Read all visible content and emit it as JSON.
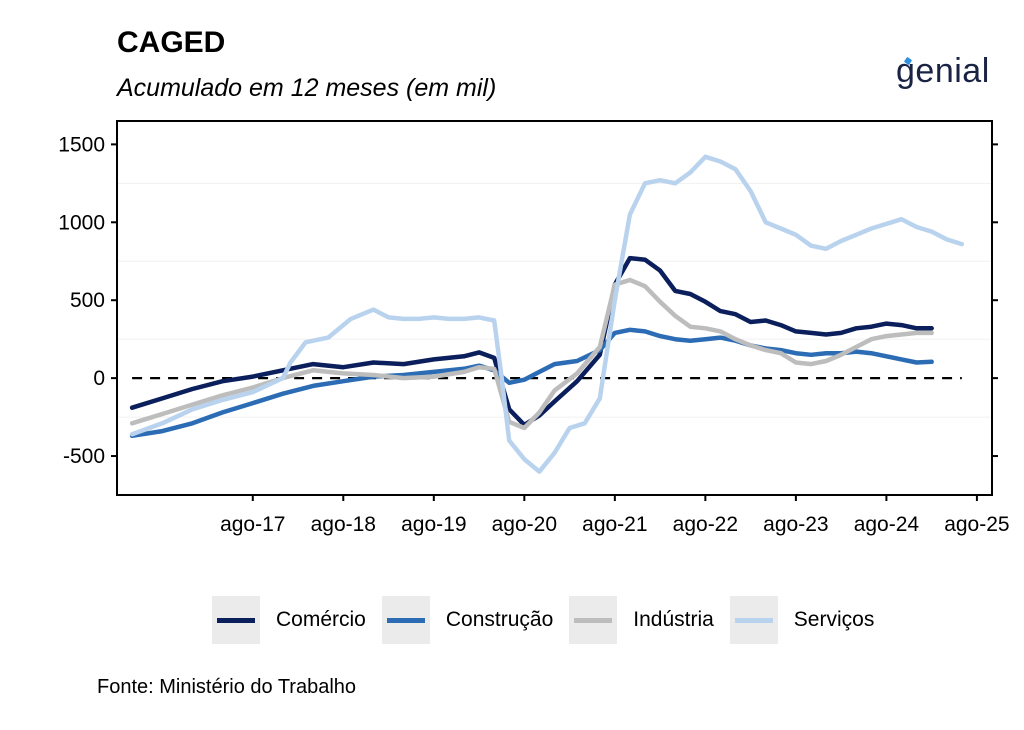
{
  "header": {
    "title": "CAGED",
    "subtitle": "Acumulado em 12 meses (em mil)",
    "logo_text": "genial"
  },
  "footer": {
    "source": "Fonte: Ministério do Trabalho"
  },
  "colors": {
    "Comércio": "#0b1f5c",
    "Construção": "#2b6cb5",
    "Indústria": "#bdbdbd",
    "Serviços": "#b9d3ee",
    "zero_line": "#000000"
  },
  "chart_data": {
    "type": "line",
    "title": "CAGED",
    "subtitle": "Acumulado em 12 meses (em mil)",
    "xlabel": "",
    "ylabel": "",
    "x_ticks": [
      "ago-17",
      "ago-18",
      "ago-19",
      "ago-20",
      "ago-21",
      "ago-22",
      "ago-23",
      "ago-24",
      "ago-25"
    ],
    "y_ticks": [
      -500,
      0,
      500,
      1000,
      1500
    ],
    "ylim": [
      -750,
      1650
    ],
    "xlim": [
      "2016-02",
      "2025-10"
    ],
    "grid": true,
    "reference_line": {
      "y": 0,
      "style": "dashed"
    },
    "legend": "bottom",
    "series": [
      {
        "name": "Comércio",
        "points": [
          [
            "2016-04",
            -190
          ],
          [
            "2016-08",
            -130
          ],
          [
            "2016-12",
            -70
          ],
          [
            "2017-04",
            -20
          ],
          [
            "2017-08",
            10
          ],
          [
            "2017-12",
            50
          ],
          [
            "2018-04",
            90
          ],
          [
            "2018-08",
            70
          ],
          [
            "2018-12",
            100
          ],
          [
            "2019-04",
            90
          ],
          [
            "2019-08",
            120
          ],
          [
            "2019-12",
            140
          ],
          [
            "2020-02",
            165
          ],
          [
            "2020-04",
            130
          ],
          [
            "2020-06",
            -200
          ],
          [
            "2020-08",
            -300
          ],
          [
            "2020-10",
            -240
          ],
          [
            "2020-12",
            -150
          ],
          [
            "2021-03",
            -20
          ],
          [
            "2021-06",
            150
          ],
          [
            "2021-08",
            600
          ],
          [
            "2021-10",
            770
          ],
          [
            "2021-12",
            760
          ],
          [
            "2022-02",
            690
          ],
          [
            "2022-04",
            560
          ],
          [
            "2022-06",
            540
          ],
          [
            "2022-08",
            490
          ],
          [
            "2022-10",
            430
          ],
          [
            "2022-12",
            410
          ],
          [
            "2023-02",
            360
          ],
          [
            "2023-04",
            370
          ],
          [
            "2023-06",
            340
          ],
          [
            "2023-08",
            300
          ],
          [
            "2023-10",
            290
          ],
          [
            "2023-12",
            280
          ],
          [
            "2024-02",
            290
          ],
          [
            "2024-04",
            320
          ],
          [
            "2024-06",
            330
          ],
          [
            "2024-08",
            350
          ],
          [
            "2024-10",
            340
          ],
          [
            "2024-12",
            320
          ],
          [
            "2025-02",
            320
          ]
        ]
      },
      {
        "name": "Construção",
        "points": [
          [
            "2016-04",
            -370
          ],
          [
            "2016-08",
            -340
          ],
          [
            "2016-12",
            -290
          ],
          [
            "2017-04",
            -220
          ],
          [
            "2017-08",
            -160
          ],
          [
            "2017-12",
            -100
          ],
          [
            "2018-04",
            -50
          ],
          [
            "2018-08",
            -20
          ],
          [
            "2018-12",
            10
          ],
          [
            "2019-04",
            20
          ],
          [
            "2019-08",
            40
          ],
          [
            "2019-12",
            60
          ],
          [
            "2020-02",
            80
          ],
          [
            "2020-04",
            50
          ],
          [
            "2020-06",
            -30
          ],
          [
            "2020-08",
            -10
          ],
          [
            "2020-10",
            40
          ],
          [
            "2020-12",
            90
          ],
          [
            "2021-03",
            110
          ],
          [
            "2021-06",
            180
          ],
          [
            "2021-08",
            290
          ],
          [
            "2021-10",
            310
          ],
          [
            "2021-12",
            300
          ],
          [
            "2022-02",
            270
          ],
          [
            "2022-04",
            250
          ],
          [
            "2022-06",
            240
          ],
          [
            "2022-08",
            250
          ],
          [
            "2022-10",
            260
          ],
          [
            "2022-12",
            240
          ],
          [
            "2023-02",
            210
          ],
          [
            "2023-04",
            190
          ],
          [
            "2023-06",
            180
          ],
          [
            "2023-08",
            160
          ],
          [
            "2023-10",
            150
          ],
          [
            "2023-12",
            160
          ],
          [
            "2024-02",
            160
          ],
          [
            "2024-04",
            170
          ],
          [
            "2024-06",
            160
          ],
          [
            "2024-08",
            140
          ],
          [
            "2024-10",
            120
          ],
          [
            "2024-12",
            100
          ],
          [
            "2025-02",
            105
          ]
        ]
      },
      {
        "name": "Indústria",
        "points": [
          [
            "2016-04",
            -290
          ],
          [
            "2016-08",
            -230
          ],
          [
            "2016-12",
            -170
          ],
          [
            "2017-04",
            -110
          ],
          [
            "2017-08",
            -60
          ],
          [
            "2017-12",
            0
          ],
          [
            "2018-04",
            50
          ],
          [
            "2018-08",
            30
          ],
          [
            "2018-12",
            20
          ],
          [
            "2019-04",
            0
          ],
          [
            "2019-08",
            10
          ],
          [
            "2019-12",
            40
          ],
          [
            "2020-02",
            70
          ],
          [
            "2020-04",
            60
          ],
          [
            "2020-06",
            -280
          ],
          [
            "2020-08",
            -320
          ],
          [
            "2020-10",
            -220
          ],
          [
            "2020-12",
            -80
          ],
          [
            "2021-03",
            30
          ],
          [
            "2021-06",
            200
          ],
          [
            "2021-08",
            600
          ],
          [
            "2021-10",
            630
          ],
          [
            "2021-12",
            590
          ],
          [
            "2022-02",
            490
          ],
          [
            "2022-04",
            400
          ],
          [
            "2022-06",
            330
          ],
          [
            "2022-08",
            320
          ],
          [
            "2022-10",
            300
          ],
          [
            "2022-12",
            250
          ],
          [
            "2023-02",
            210
          ],
          [
            "2023-04",
            180
          ],
          [
            "2023-06",
            160
          ],
          [
            "2023-08",
            100
          ],
          [
            "2023-10",
            90
          ],
          [
            "2023-12",
            110
          ],
          [
            "2024-02",
            150
          ],
          [
            "2024-04",
            200
          ],
          [
            "2024-06",
            250
          ],
          [
            "2024-08",
            270
          ],
          [
            "2024-10",
            280
          ],
          [
            "2024-12",
            290
          ],
          [
            "2025-02",
            290
          ]
        ]
      },
      {
        "name": "Serviços",
        "points": [
          [
            "2016-04",
            -360
          ],
          [
            "2016-08",
            -290
          ],
          [
            "2016-12",
            -200
          ],
          [
            "2017-04",
            -140
          ],
          [
            "2017-08",
            -90
          ],
          [
            "2017-12",
            0
          ],
          [
            "2018-01",
            100
          ],
          [
            "2018-03",
            230
          ],
          [
            "2018-06",
            260
          ],
          [
            "2018-09",
            380
          ],
          [
            "2018-12",
            440
          ],
          [
            "2019-02",
            390
          ],
          [
            "2019-04",
            380
          ],
          [
            "2019-06",
            380
          ],
          [
            "2019-08",
            390
          ],
          [
            "2019-10",
            380
          ],
          [
            "2019-12",
            380
          ],
          [
            "2020-02",
            390
          ],
          [
            "2020-04",
            370
          ],
          [
            "2020-05",
            0
          ],
          [
            "2020-06",
            -400
          ],
          [
            "2020-08",
            -520
          ],
          [
            "2020-10",
            -600
          ],
          [
            "2020-12",
            -480
          ],
          [
            "2021-02",
            -320
          ],
          [
            "2021-04",
            -290
          ],
          [
            "2021-06",
            -130
          ],
          [
            "2021-08",
            500
          ],
          [
            "2021-10",
            1050
          ],
          [
            "2021-12",
            1250
          ],
          [
            "2022-02",
            1270
          ],
          [
            "2022-04",
            1250
          ],
          [
            "2022-06",
            1320
          ],
          [
            "2022-08",
            1420
          ],
          [
            "2022-10",
            1390
          ],
          [
            "2022-12",
            1340
          ],
          [
            "2023-02",
            1200
          ],
          [
            "2023-04",
            1000
          ],
          [
            "2023-06",
            960
          ],
          [
            "2023-08",
            920
          ],
          [
            "2023-10",
            850
          ],
          [
            "2023-12",
            830
          ],
          [
            "2024-02",
            880
          ],
          [
            "2024-04",
            920
          ],
          [
            "2024-06",
            960
          ],
          [
            "2024-08",
            990
          ],
          [
            "2024-10",
            1020
          ],
          [
            "2024-12",
            970
          ],
          [
            "2025-02",
            940
          ],
          [
            "2025-04",
            890
          ],
          [
            "2025-06",
            860
          ]
        ]
      }
    ]
  }
}
